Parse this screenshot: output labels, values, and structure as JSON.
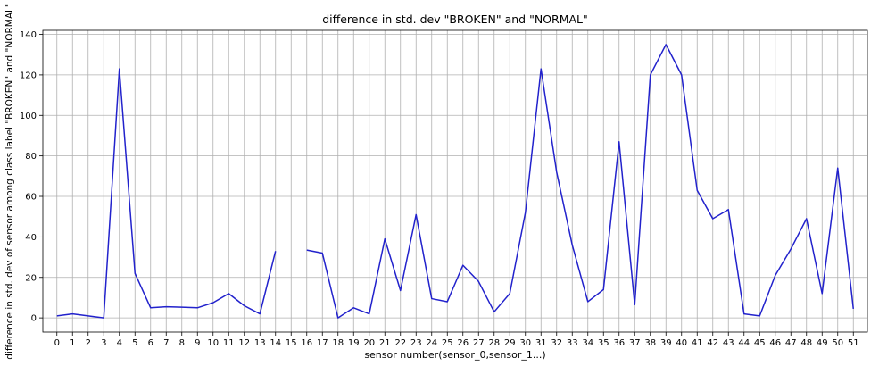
{
  "chart_data": {
    "type": "line",
    "title": "difference in std. dev \"BROKEN\" and \"NORMAL\"",
    "xlabel": "sensor number(sensor_0,sensor_1...)",
    "ylabel": "difference in std. dev of sensor among class label \"BROKEN\" and \"NORMAL\"",
    "x": [
      0,
      1,
      2,
      3,
      4,
      5,
      6,
      7,
      8,
      9,
      10,
      11,
      12,
      13,
      14,
      15,
      16,
      17,
      18,
      19,
      20,
      21,
      22,
      23,
      24,
      25,
      26,
      27,
      28,
      29,
      30,
      31,
      32,
      33,
      34,
      35,
      36,
      37,
      38,
      39,
      40,
      41,
      42,
      43,
      44,
      45,
      46,
      47,
      48,
      49,
      50,
      51
    ],
    "xticks": [
      "0",
      "1",
      "2",
      "3",
      "4",
      "5",
      "6",
      "7",
      "8",
      "9",
      "10",
      "11",
      "12",
      "13",
      "14",
      "15",
      "16",
      "17",
      "18",
      "19",
      "20",
      "21",
      "22",
      "23",
      "24",
      "25",
      "26",
      "27",
      "28",
      "29",
      "30",
      "31",
      "32",
      "33",
      "34",
      "35",
      "36",
      "37",
      "38",
      "39",
      "40",
      "41",
      "42",
      "43",
      "44",
      "45",
      "46",
      "47",
      "48",
      "49",
      "50",
      "51"
    ],
    "yticks": [
      0,
      20,
      40,
      60,
      80,
      100,
      120,
      140
    ],
    "ylim": [
      -7,
      142
    ],
    "xlim": [
      -0.9,
      51.9
    ],
    "grid": true,
    "line_color": "#2222cc",
    "series": [
      {
        "values": [
          1,
          2,
          1,
          0,
          123,
          22,
          5,
          5.5,
          5.3,
          5,
          7.5,
          12,
          6,
          2,
          33,
          null,
          33.5,
          32,
          0,
          5,
          2,
          39,
          13.5,
          51,
          9.5,
          8,
          26,
          18,
          3,
          12,
          52,
          123,
          72,
          36,
          8,
          14,
          87,
          6.5,
          120,
          135,
          120,
          63,
          49,
          53.5,
          2,
          1,
          21,
          34,
          49,
          12,
          74,
          4.5
        ]
      }
    ]
  }
}
